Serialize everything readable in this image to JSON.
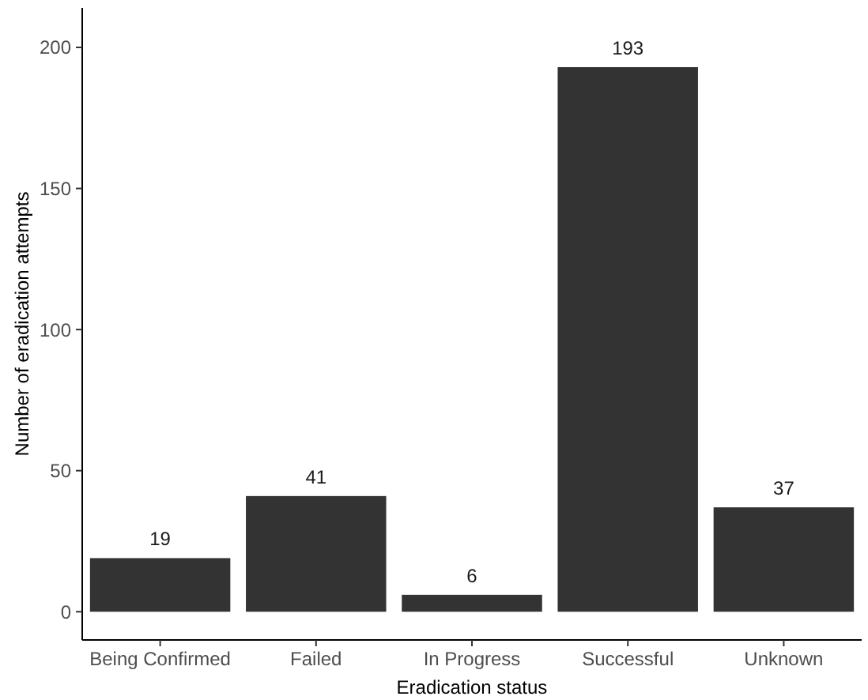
{
  "chart_data": {
    "type": "bar",
    "xlabel": "Eradication status",
    "ylabel": "Number of eradication attempts",
    "categories": [
      "Being Confirmed",
      "Failed",
      "In Progress",
      "Successful",
      "Unknown"
    ],
    "values": [
      19,
      41,
      6,
      193,
      37
    ],
    "color": "#333333",
    "ylim": [
      -10,
      214
    ],
    "yticks": [
      0,
      50,
      100,
      150,
      200
    ],
    "grid": false,
    "data_labels": true
  }
}
